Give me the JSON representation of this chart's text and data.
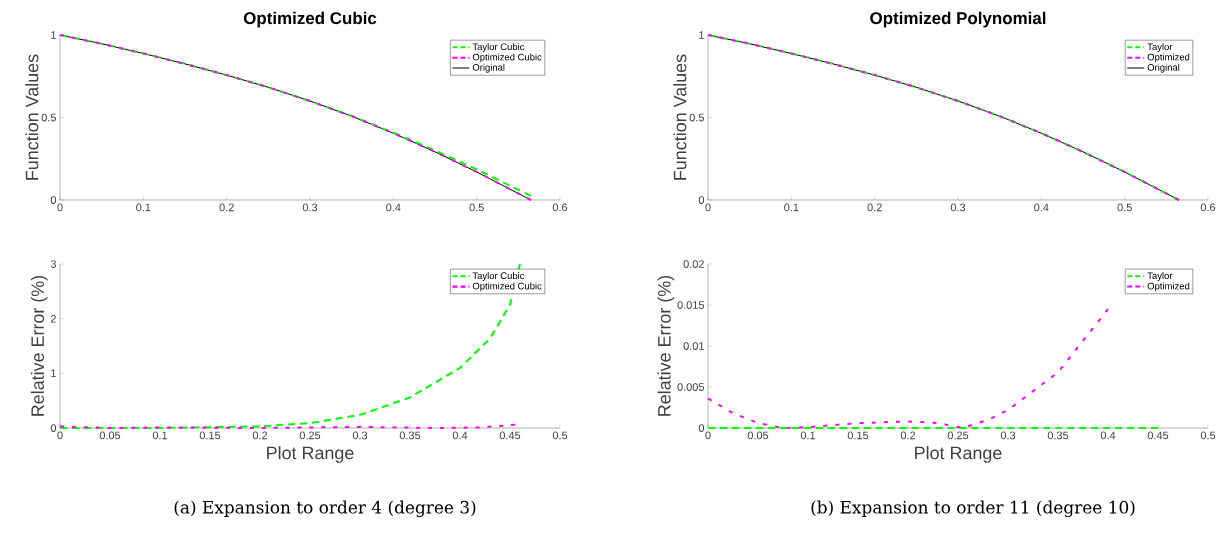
{
  "chart_data": [
    {
      "type": "line",
      "title": "Optimized Cubic",
      "ylabel": "Function Values",
      "xlim": [
        0,
        0.6
      ],
      "ylim": [
        0,
        1
      ],
      "xticks": [
        0,
        0.1,
        0.2,
        0.3,
        0.4,
        0.5,
        0.6
      ],
      "yticks": [
        0,
        0.5,
        1
      ],
      "legend": "top right",
      "series": [
        {
          "name": "Taylor Cubic",
          "color": "#00ff00",
          "line_style": "dashed",
          "x": [
            0,
            0.05,
            0.1,
            0.15,
            0.2,
            0.25,
            0.3,
            0.35,
            0.4,
            0.45,
            0.5,
            0.565
          ],
          "values": [
            1,
            0.947,
            0.888,
            0.825,
            0.757,
            0.683,
            0.6,
            0.509,
            0.408,
            0.3,
            0.185,
            0.025
          ]
        },
        {
          "name": "Optimized Cubic",
          "color": "#ff00ff",
          "line_style": "dashed",
          "x": [
            0,
            0.05,
            0.1,
            0.15,
            0.2,
            0.25,
            0.3,
            0.35,
            0.4,
            0.45,
            0.5,
            0.565
          ],
          "values": [
            1,
            0.947,
            0.888,
            0.825,
            0.757,
            0.683,
            0.6,
            0.508,
            0.405,
            0.292,
            0.17,
            0
          ]
        },
        {
          "name": "Original",
          "color": "#000000",
          "line_style": "solid",
          "x": [
            0,
            0.05,
            0.1,
            0.15,
            0.2,
            0.25,
            0.3,
            0.35,
            0.4,
            0.45,
            0.5,
            0.565
          ],
          "values": [
            1,
            0.947,
            0.888,
            0.825,
            0.757,
            0.683,
            0.6,
            0.508,
            0.405,
            0.292,
            0.17,
            0
          ]
        }
      ]
    },
    {
      "type": "line",
      "title": "Optimized Polynomial",
      "ylabel": "Function Values",
      "xlim": [
        0,
        0.6
      ],
      "ylim": [
        0,
        1
      ],
      "xticks": [
        0,
        0.1,
        0.2,
        0.3,
        0.4,
        0.5,
        0.6
      ],
      "yticks": [
        0,
        0.5,
        1
      ],
      "legend": "top right",
      "series": [
        {
          "name": "Taylor",
          "color": "#00ff00",
          "line_style": "dashed",
          "x": [
            0,
            0.05,
            0.1,
            0.15,
            0.2,
            0.25,
            0.3,
            0.35,
            0.4,
            0.45,
            0.5,
            0.565
          ],
          "values": [
            1,
            0.947,
            0.888,
            0.825,
            0.757,
            0.683,
            0.6,
            0.508,
            0.405,
            0.292,
            0.17,
            0
          ]
        },
        {
          "name": "Optimized",
          "color": "#ff00ff",
          "line_style": "dashed",
          "x": [
            0,
            0.05,
            0.1,
            0.15,
            0.2,
            0.25,
            0.3,
            0.35,
            0.4,
            0.45,
            0.5,
            0.565
          ],
          "values": [
            1,
            0.947,
            0.888,
            0.825,
            0.757,
            0.683,
            0.6,
            0.508,
            0.405,
            0.292,
            0.17,
            0
          ]
        },
        {
          "name": "Original",
          "color": "#000000",
          "line_style": "solid",
          "x": [
            0,
            0.05,
            0.1,
            0.15,
            0.2,
            0.25,
            0.3,
            0.35,
            0.4,
            0.45,
            0.5,
            0.565
          ],
          "values": [
            1,
            0.947,
            0.888,
            0.825,
            0.757,
            0.683,
            0.6,
            0.508,
            0.405,
            0.292,
            0.17,
            0
          ]
        }
      ]
    },
    {
      "type": "line",
      "xlabel": "Plot Range",
      "ylabel": "Relative Error (%)",
      "xlim": [
        0,
        0.5
      ],
      "ylim": [
        0,
        3
      ],
      "xticks": [
        0,
        0.05,
        0.1,
        0.15,
        0.2,
        0.25,
        0.3,
        0.35,
        0.4,
        0.45,
        0.5
      ],
      "yticks": [
        0,
        1,
        2,
        3
      ],
      "legend": "top right",
      "annotations": [
        "(a) Expansion to order 4 (degree 3)"
      ],
      "series": [
        {
          "name": "Taylor Cubic",
          "color": "#00ff00",
          "line_style": "dashed",
          "x": [
            0,
            0.1,
            0.2,
            0.25,
            0.3,
            0.35,
            0.4,
            0.43,
            0.45,
            0.46
          ],
          "values": [
            0,
            0,
            0.03,
            0.09,
            0.24,
            0.56,
            1.1,
            1.64,
            2.26,
            3
          ]
        },
        {
          "name": "Optimized Cubic",
          "color": "#ff00ff",
          "line_style": "dashed",
          "x": [
            0,
            0.05,
            0.1,
            0.2,
            0.3,
            0.38,
            0.42,
            0.455
          ],
          "values": [
            0.03,
            0,
            0.01,
            0,
            0.02,
            0,
            0.01,
            0.06
          ]
        }
      ]
    },
    {
      "type": "line",
      "xlabel": "Plot Range",
      "ylabel": "Relative Error (%)",
      "xlim": [
        0,
        0.5
      ],
      "ylim": [
        0,
        0.02
      ],
      "xticks": [
        0,
        0.05,
        0.1,
        0.15,
        0.2,
        0.25,
        0.3,
        0.35,
        0.4,
        0.45,
        0.5
      ],
      "yticks": [
        0,
        0.005,
        0.01,
        0.015,
        0.02
      ],
      "legend": "top right",
      "annotations": [
        "(b) Expansion to order 11 (degree 10)"
      ],
      "series": [
        {
          "name": "Taylor",
          "color": "#00ff00",
          "line_style": "dashed",
          "x": [
            0,
            0.45
          ],
          "values": [
            0,
            0
          ]
        },
        {
          "name": "Optimized",
          "color": "#ff00ff",
          "line_style": "dashed",
          "x": [
            0,
            0.025,
            0.05,
            0.075,
            0.1,
            0.15,
            0.2,
            0.23,
            0.255,
            0.28,
            0.3,
            0.35,
            0.4
          ],
          "values": [
            0.0036,
            0.0018,
            0.0006,
            0,
            0.0001,
            0.0006,
            0.0008,
            0.0006,
            0,
            0.001,
            0.0022,
            0.0068,
            0.0145
          ]
        }
      ]
    }
  ]
}
